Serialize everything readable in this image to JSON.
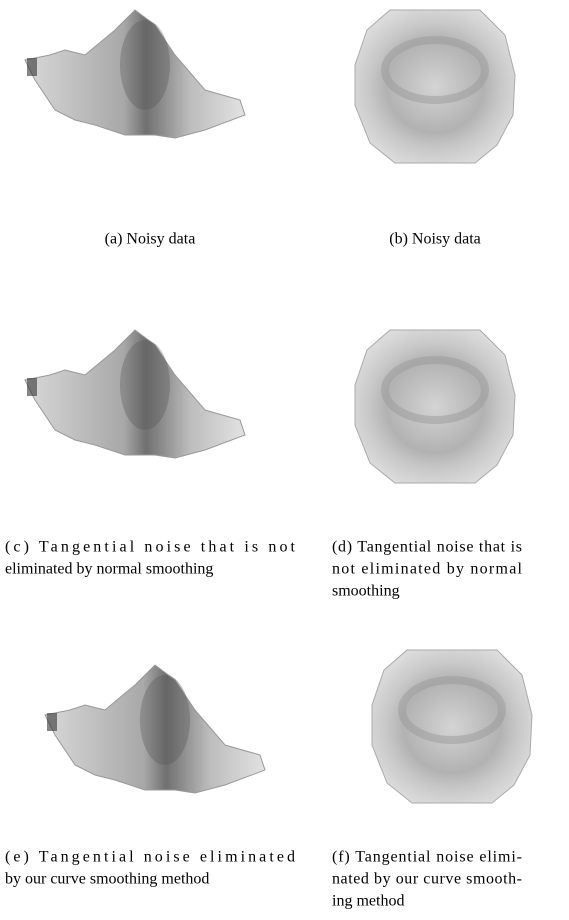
{
  "subfigures": [
    {
      "caption": [
        "(a) Noisy data"
      ]
    },
    {
      "caption": [
        "(b) Noisy data"
      ]
    },
    {
      "caption": [
        "(c) Tangential noise that is not",
        "eliminated by normal smoothing"
      ]
    },
    {
      "caption": [
        "(d) Tangential noise that is",
        "not eliminated by normal",
        "smoothing"
      ]
    },
    {
      "caption": [
        "(e) Tangential noise eliminated",
        "by our curve smoothing method"
      ]
    },
    {
      "caption": [
        "(f) Tangential noise elimi-",
        "nated by our curve smooth-",
        "ing method"
      ]
    }
  ]
}
